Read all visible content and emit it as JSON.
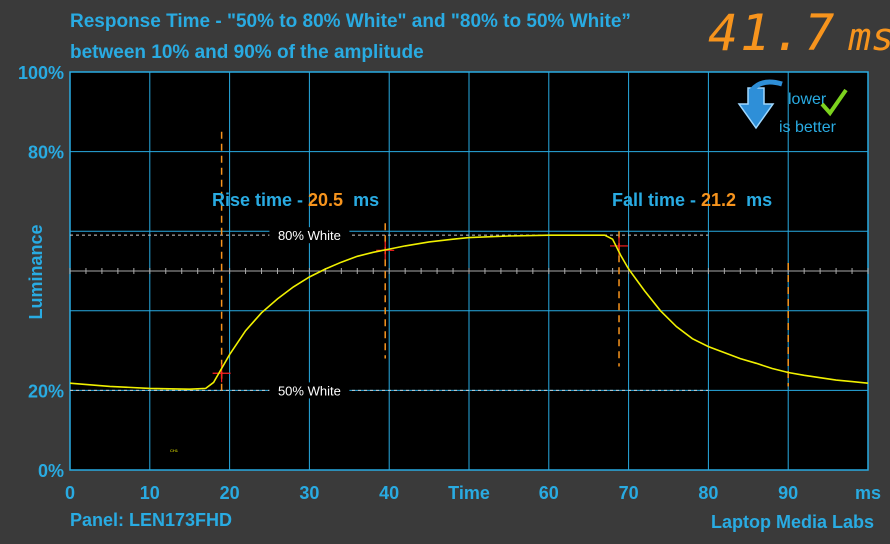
{
  "header": {
    "title_line1": "Response Time - \"50% to 80% White\" and \"80% to 50% White”",
    "title_line2": "between 10% and 90% of the amplitude",
    "readout_value": "41.7",
    "readout_unit": "ms"
  },
  "footer": {
    "panel": "Panel: LEN173FHD",
    "brand": "Laptop Media Labs"
  },
  "badge": {
    "line1": "lower",
    "line2": "is better",
    "icon": "down-arrow-icon",
    "check_icon": "check-icon"
  },
  "colors": {
    "background": "#3a3a3a",
    "plot": "#000000",
    "grid": "#29abe2",
    "trace": "#f0f000",
    "accent": "#f7941d",
    "label": "#29abe2"
  },
  "chart_data": {
    "type": "line",
    "xlabel": "Time",
    "xunit": "ms",
    "ylabel": "Luminance",
    "xlim": [
      0,
      100
    ],
    "ylim": [
      0,
      100
    ],
    "x_ticks": [
      "0",
      "10",
      "20",
      "30",
      "40",
      "Time",
      "60",
      "70",
      "80",
      "90",
      "ms"
    ],
    "y_ticks": [
      {
        "value": 100,
        "label": "100%"
      },
      {
        "value": 80,
        "label": "80%"
      },
      {
        "value": 20,
        "label": "20%"
      },
      {
        "value": 0,
        "label": "0%"
      }
    ],
    "grid": true,
    "reference_lines": [
      {
        "value": 59,
        "label": "80% White"
      },
      {
        "value": 20,
        "label": "50% White"
      }
    ],
    "rise": {
      "label": "Rise time - ",
      "value": "20.5",
      "unit": "ms",
      "start_x": 19,
      "end_x": 39.5
    },
    "fall": {
      "label": "Fall time - ",
      "value": "21.2",
      "unit": "ms",
      "start_x": 68.8,
      "end_x": 90
    },
    "series": [
      {
        "x": [
          0,
          5,
          10,
          15,
          17,
          18,
          19,
          20,
          22,
          24,
          26,
          28,
          30,
          32,
          34,
          36,
          38,
          40,
          42,
          45,
          48,
          50,
          55,
          60,
          65,
          67,
          68,
          69,
          70,
          72,
          74,
          76,
          78,
          80,
          82,
          84,
          86,
          88,
          90,
          92,
          94,
          96,
          98,
          100
        ],
        "y": [
          21.8,
          21,
          20.5,
          20.3,
          20.5,
          22,
          25.5,
          29,
          35,
          39.5,
          43,
          46,
          48.5,
          50.5,
          52.2,
          53.7,
          54.7,
          55.5,
          56.3,
          57.3,
          58,
          58.4,
          58.8,
          59,
          59,
          59,
          58,
          54,
          50.5,
          45,
          40,
          36,
          33,
          31,
          29.5,
          28,
          26.8,
          25.5,
          24.5,
          23.8,
          23.2,
          22.6,
          22.2,
          21.8
        ]
      }
    ]
  }
}
